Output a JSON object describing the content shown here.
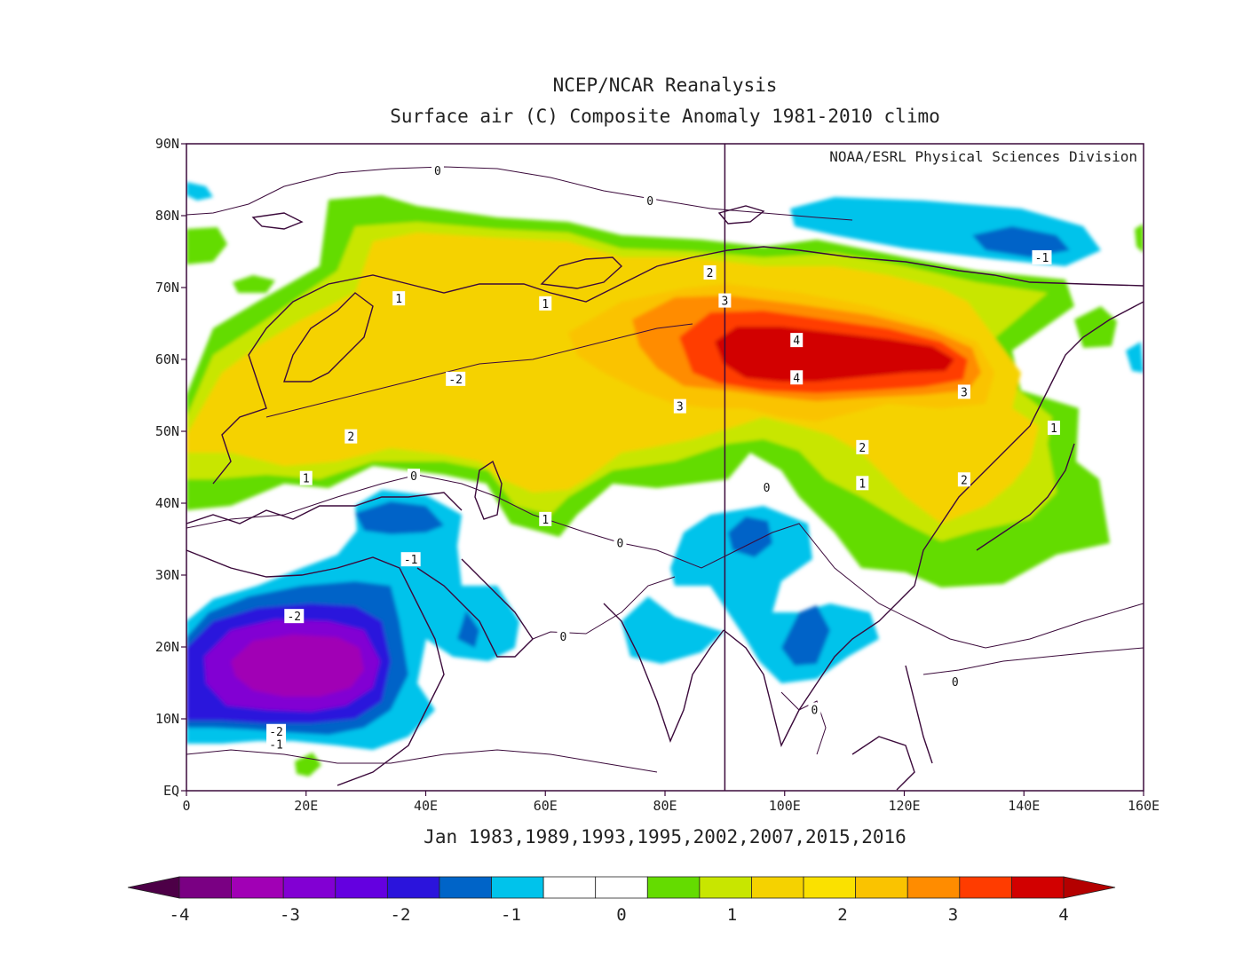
{
  "title_line1": "NCEP/NCAR Reanalysis",
  "title_line2": "Surface air (C) Composite Anomaly 1981-2010 climo",
  "credit": "NOAA/ESRL Physical Sciences Division",
  "caption": "Jan 1983,1989,1993,1995,2002,2007,2015,2016",
  "axes": {
    "lon_range": [
      0,
      160
    ],
    "lat_range": [
      0,
      90
    ],
    "x_ticks": [
      "0",
      "20E",
      "40E",
      "60E",
      "80E",
      "100E",
      "120E",
      "140E",
      "160E"
    ],
    "y_ticks": [
      "EQ",
      "10N",
      "20N",
      "30N",
      "40N",
      "50N",
      "60N",
      "70N",
      "80N",
      "90N"
    ]
  },
  "colorbar": {
    "tick_labels": [
      "-4",
      "-3",
      "-2",
      "-1",
      "0",
      "1",
      "2",
      "3",
      "4"
    ],
    "colors": [
      "#4d0047",
      "#7a0083",
      "#a100b5",
      "#8200d3",
      "#6400e0",
      "#2b14dc",
      "#0064c8",
      "#00c3eb",
      "#ffffff",
      "#ffffff",
      "#64dc00",
      "#c8e600",
      "#f5d200",
      "#fae100",
      "#fac300",
      "#ff8c00",
      "#ff3c00",
      "#d20000",
      "#b40000"
    ]
  },
  "contour_labels": [
    {
      "text": "0",
      "lon": 42,
      "lat": 86.3
    },
    {
      "text": "0",
      "lon": 77.5,
      "lat": 82.1
    },
    {
      "text": "-1",
      "lon": 143,
      "lat": 74.2
    },
    {
      "text": "2",
      "lon": 87.5,
      "lat": 72.1
    },
    {
      "text": "3",
      "lon": 90,
      "lat": 68.2
    },
    {
      "text": "1",
      "lon": 35.5,
      "lat": 68.5
    },
    {
      "text": "1",
      "lon": 60,
      "lat": 67.8
    },
    {
      "text": "4",
      "lon": 102,
      "lat": 62.7
    },
    {
      "text": "4",
      "lon": 102,
      "lat": 57.5
    },
    {
      "text": "-2",
      "lon": 45,
      "lat": 57.3
    },
    {
      "text": "3",
      "lon": 82.5,
      "lat": 53.5
    },
    {
      "text": "3",
      "lon": 130,
      "lat": 55.5
    },
    {
      "text": "1",
      "lon": 145,
      "lat": 50.5
    },
    {
      "text": "2",
      "lon": 27.5,
      "lat": 49.3
    },
    {
      "text": "2",
      "lon": 113,
      "lat": 47.8
    },
    {
      "text": "0",
      "lon": 38,
      "lat": 43.8
    },
    {
      "text": "1",
      "lon": 20,
      "lat": 43.5
    },
    {
      "text": "1",
      "lon": 113,
      "lat": 42.8
    },
    {
      "text": "2",
      "lon": 130,
      "lat": 43.3
    },
    {
      "text": "0",
      "lon": 97,
      "lat": 42.2
    },
    {
      "text": "1",
      "lon": 60,
      "lat": 37.8
    },
    {
      "text": "0",
      "lon": 72.5,
      "lat": 34.5
    },
    {
      "text": "-1",
      "lon": 37.5,
      "lat": 32.2
    },
    {
      "text": "-2",
      "lon": 18,
      "lat": 24.3
    },
    {
      "text": "0",
      "lon": 63,
      "lat": 21.5
    },
    {
      "text": "0",
      "lon": 128.5,
      "lat": 15.2
    },
    {
      "text": "0",
      "lon": 105,
      "lat": 11.3
    },
    {
      "text": "-2",
      "lon": 15,
      "lat": 8.3
    },
    {
      "text": "-1",
      "lon": 15,
      "lat": 6.5
    }
  ]
}
